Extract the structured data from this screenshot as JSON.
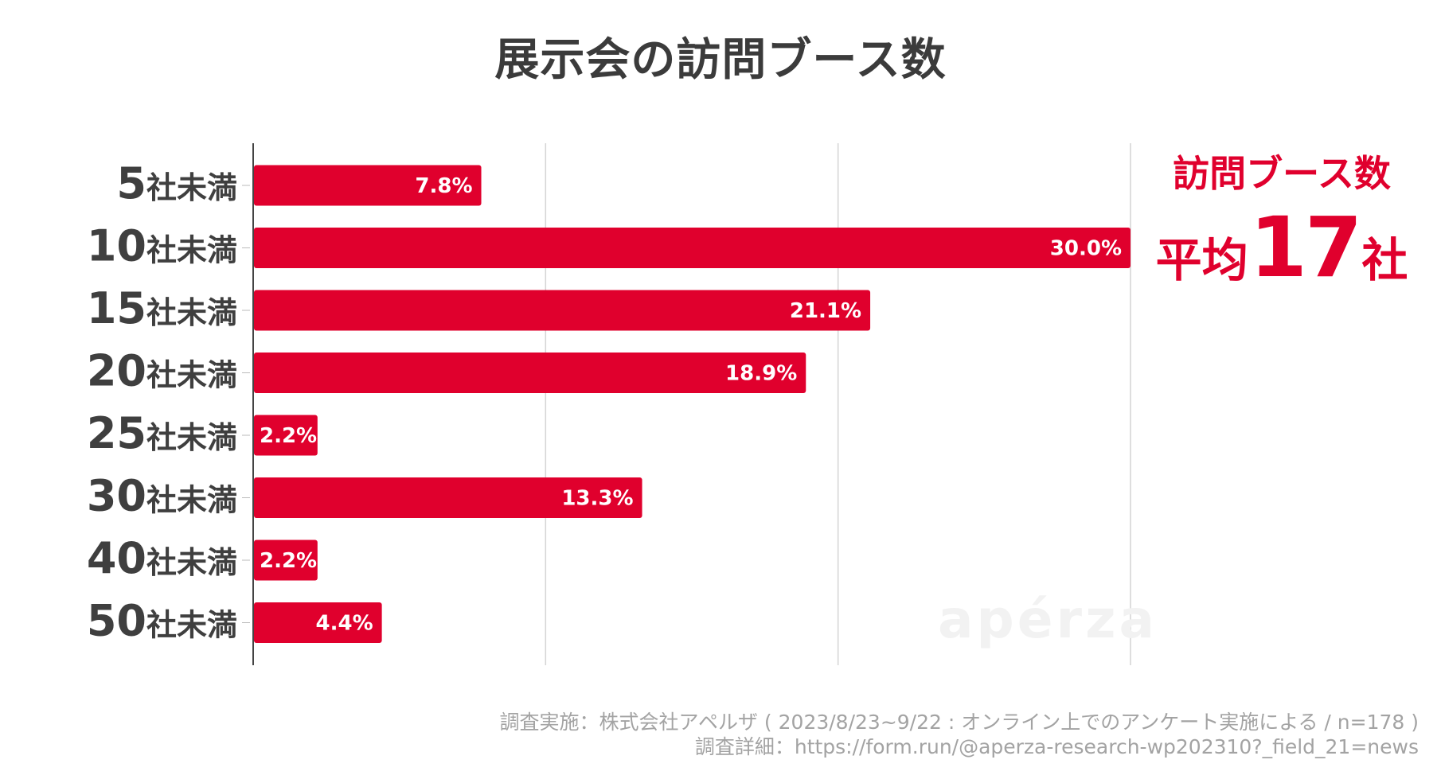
{
  "chart_data": {
    "type": "bar",
    "orientation": "horizontal",
    "title": "展示会の訪問ブース数",
    "categories": [
      "5社未満",
      "10社未満",
      "15社未満",
      "20社未満",
      "25社未満",
      "30社未満",
      "40社未満",
      "50社未満"
    ],
    "category_numbers": [
      "5",
      "10",
      "15",
      "20",
      "25",
      "30",
      "40",
      "50"
    ],
    "category_suffix": "社未満",
    "values": [
      7.8,
      30.0,
      21.1,
      18.9,
      2.2,
      13.3,
      2.2,
      4.4
    ],
    "value_labels": [
      "7.8%",
      "30.0%",
      "21.1%",
      "18.9%",
      "2.2%",
      "13.3%",
      "2.2%",
      "4.4%"
    ],
    "xlim": [
      0,
      30
    ],
    "x_gridlines": [
      0,
      10,
      20,
      30
    ],
    "bar_color": "#e0002d",
    "label_color": "#ffffff"
  },
  "average_callout": {
    "label": "訪問ブース数",
    "prefix": "平均",
    "number": "17",
    "suffix": "社",
    "color": "#e0002d"
  },
  "watermark": "apérza",
  "source": {
    "line1": "調査実施：株式会社アペルザ ( 2023/8/23~9/22 : オンライン上でのアンケート実施による / n=178 )",
    "line2": "調査詳細：https://form.run/@aperza-research-wp202310?_field_21=news"
  }
}
